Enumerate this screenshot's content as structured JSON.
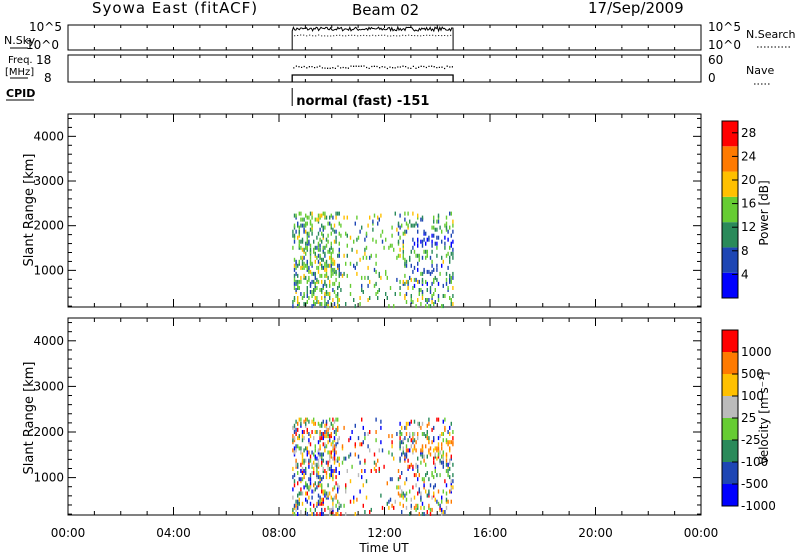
{
  "header": {
    "title": "Syowa East (fitACF)",
    "beam": "Beam 02",
    "date": "17/Sep/2009"
  },
  "panels": {
    "nsky": {
      "label": "N.Sky",
      "ticks_left": [
        "10^5",
        "10^0"
      ],
      "ticks_right": [
        "10^5",
        "10^0"
      ],
      "right_label": "N.Search"
    },
    "freq": {
      "label_line1": "Freq.",
      "label_line2": "[MHz]",
      "ticks_left": [
        "18",
        "8"
      ],
      "ticks_right": [
        "60",
        "0"
      ],
      "right_label": "Nave"
    },
    "cpid": {
      "label": "CPID",
      "program": "normal (fast) -151"
    }
  },
  "time_axis": {
    "label": "Time UT",
    "ticks": [
      "00:00",
      "04:00",
      "08:00",
      "12:00",
      "16:00",
      "20:00",
      "00:00"
    ],
    "range_hours": [
      0,
      24
    ],
    "data_start_hour": 8.5,
    "data_end_hour": 14.6
  },
  "chart_data": [
    {
      "type": "heatmap",
      "name": "power",
      "ylabel": "Slant Range [km]",
      "yticks": [
        "1000",
        "2000",
        "3000",
        "4000"
      ],
      "ylim": [
        180,
        4500
      ],
      "colorbar": {
        "label": "Power [dB]",
        "ticks": [
          "4",
          "8",
          "12",
          "16",
          "20",
          "24",
          "28"
        ],
        "range": [
          0,
          30
        ],
        "colors": [
          "#0000ff",
          "#1e46b4",
          "#2a8a5a",
          "#66cc33",
          "#ffc000",
          "#ff7a00",
          "#ff0000"
        ]
      }
    },
    {
      "type": "heatmap",
      "name": "velocity",
      "ylabel": "Slant Range [km]",
      "yticks": [
        "1000",
        "2000",
        "3000",
        "4000"
      ],
      "ylim": [
        180,
        4500
      ],
      "colorbar": {
        "label": "Velocity [m s⁻¹]",
        "ticks": [
          "1000",
          "500",
          "100",
          "25",
          "-25",
          "-100",
          "-500",
          "-1000"
        ],
        "colors": [
          "#0000ff",
          "#1e46b4",
          "#2a8a5a",
          "#66cc33",
          "#bbbbbb",
          "#ffc000",
          "#ff7a00",
          "#ff0000"
        ]
      }
    }
  ]
}
